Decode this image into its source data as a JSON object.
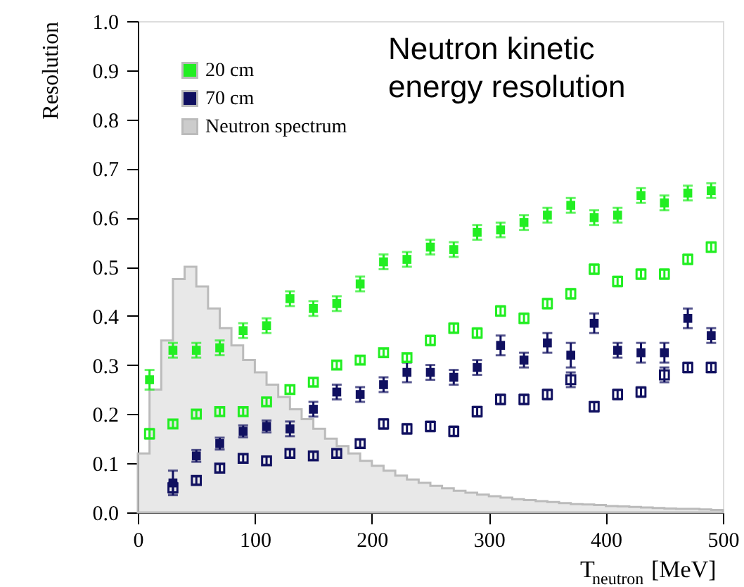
{
  "chart_data": {
    "type": "scatter",
    "title": "Neutron kinetic energy resolution",
    "xlabel": "T$_{neutron}$ [MeV]",
    "ylabel": "Resolution",
    "x": [
      10,
      30,
      50,
      70,
      90,
      110,
      130,
      150,
      170,
      190,
      210,
      230,
      250,
      270,
      290,
      310,
      330,
      350,
      370,
      390,
      410,
      430,
      450,
      470,
      490
    ],
    "series": [
      {
        "name": "20 cm",
        "color": "#22ee22",
        "values": [
          0.27,
          0.33,
          0.33,
          0.335,
          0.37,
          0.38,
          0.435,
          0.415,
          0.425,
          0.465,
          0.51,
          0.515,
          0.54,
          0.535,
          0.57,
          0.575,
          0.59,
          0.605,
          0.625,
          0.6,
          0.605,
          0.645,
          0.63,
          0.65,
          0.655
        ],
        "errors": [
          0.02,
          0.015,
          0.015,
          0.015,
          0.015,
          0.015,
          0.015,
          0.015,
          0.015,
          0.015,
          0.015,
          0.015,
          0.015,
          0.015,
          0.015,
          0.015,
          0.015,
          0.015,
          0.015,
          0.015,
          0.015,
          0.015,
          0.015,
          0.015,
          0.015
        ]
      },
      {
        "name": "70 cm",
        "color": "#101060",
        "values": [
          null,
          0.06,
          0.115,
          0.14,
          0.165,
          0.175,
          0.17,
          0.21,
          0.245,
          0.24,
          0.26,
          0.285,
          0.285,
          0.275,
          0.295,
          0.34,
          0.31,
          0.345,
          0.32,
          0.385,
          0.33,
          0.325,
          0.325,
          0.395,
          0.36
        ],
        "errors": [
          null,
          0.025,
          0.012,
          0.012,
          0.012,
          0.012,
          0.015,
          0.015,
          0.015,
          0.015,
          0.015,
          0.02,
          0.015,
          0.015,
          0.015,
          0.02,
          0.015,
          0.02,
          0.025,
          0.02,
          0.015,
          0.02,
          0.02,
          0.02,
          0.015
        ]
      },
      {
        "name": "Neutron spectrum",
        "type": "histogram",
        "color": "#cccccc",
        "bins": [
          0,
          10,
          20,
          30,
          40,
          50,
          60,
          70,
          80,
          90,
          100,
          110,
          120,
          130,
          140,
          150,
          160,
          170,
          180,
          190,
          200,
          210,
          220,
          230,
          240,
          250,
          260,
          270,
          280,
          290,
          300,
          310,
          320,
          330,
          340,
          350,
          360,
          370,
          380,
          390,
          400,
          410,
          420,
          430,
          440,
          450,
          460,
          470,
          480,
          490,
          500
        ],
        "values": [
          0.12,
          0.25,
          0.35,
          0.475,
          0.5,
          0.46,
          0.415,
          0.375,
          0.34,
          0.31,
          0.285,
          0.26,
          0.235,
          0.21,
          0.19,
          0.17,
          0.15,
          0.135,
          0.12,
          0.105,
          0.095,
          0.085,
          0.075,
          0.067,
          0.06,
          0.054,
          0.049,
          0.044,
          0.04,
          0.036,
          0.033,
          0.03,
          0.027,
          0.025,
          0.023,
          0.021,
          0.019,
          0.017,
          0.016,
          0.015,
          0.013,
          0.012,
          0.011,
          0.01,
          0.009,
          0.008,
          0.007,
          0.007,
          0.006,
          0.005
        ]
      },
      {
        "color": "#22ee22",
        "values": [
          0.16,
          0.18,
          0.2,
          0.205,
          0.205,
          0.225,
          0.25,
          0.265,
          0.3,
          0.31,
          0.325,
          0.315,
          0.35,
          0.375,
          0.365,
          0.41,
          0.395,
          0.425,
          0.445,
          0.495,
          0.47,
          0.485,
          0.485,
          0.515,
          0.54
        ],
        "errors": [
          0.01,
          0.008,
          0.008,
          0.008,
          0.008,
          0.008,
          0.008,
          0.008,
          0.008,
          0.008,
          0.008,
          0.008,
          0.01,
          0.01,
          0.01,
          0.01,
          0.01,
          0.01,
          0.01,
          0.01,
          0.01,
          0.01,
          0.01,
          0.01,
          0.01
        ]
      },
      {
        "color": "#101060",
        "values": [
          null,
          0.05,
          0.065,
          0.09,
          0.11,
          0.105,
          0.12,
          0.115,
          0.12,
          0.14,
          0.18,
          0.17,
          0.175,
          0.165,
          0.205,
          0.23,
          0.23,
          0.24,
          0.27,
          0.215,
          0.24,
          0.245,
          0.28,
          0.295,
          0.295
        ],
        "errors": [
          null,
          0.01,
          0.008,
          0.008,
          0.008,
          0.008,
          0.008,
          0.008,
          0.008,
          0.008,
          0.01,
          0.01,
          0.01,
          0.01,
          0.01,
          0.01,
          0.01,
          0.01,
          0.015,
          0.01,
          0.01,
          0.01,
          0.015,
          0.01,
          0.01
        ]
      }
    ],
    "xlim": [
      0,
      500
    ],
    "xticks": [
      0,
      100,
      200,
      300,
      400,
      500
    ],
    "ylim": [
      0,
      1.0
    ],
    "yticks": [
      {
        "value": 0,
        "label": "0.0"
      },
      0.1,
      0.2,
      0.3,
      0.4,
      0.5,
      0.6,
      0.7,
      0.8,
      0.9,
      {
        "value": 1.0,
        "label": "1.0"
      }
    ],
    "marker": "square",
    "grid": false,
    "legend": "top left"
  }
}
